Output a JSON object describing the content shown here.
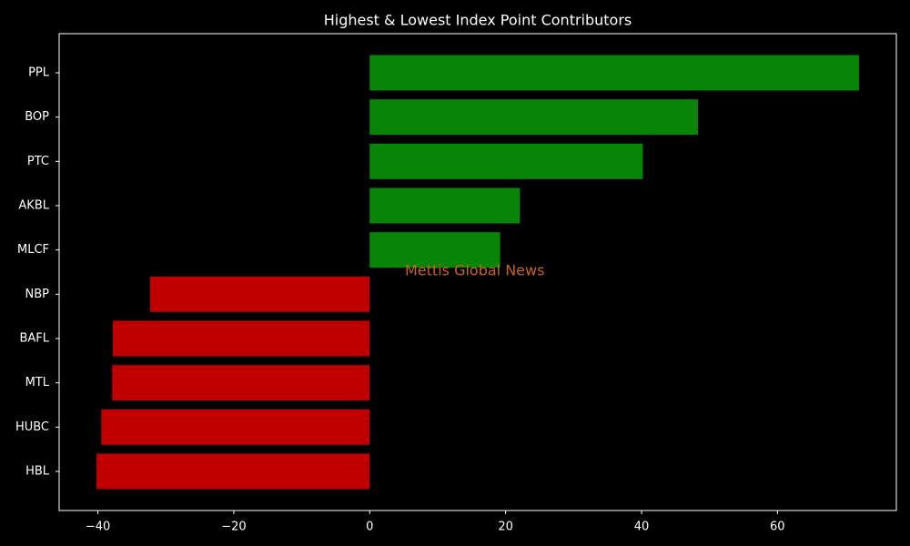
{
  "chart_data": {
    "type": "barh",
    "title": "Highest & Lowest Index Point Contributors",
    "categories": [
      "PPL",
      "BOP",
      "PTC",
      "AKBL",
      "MLCF",
      "NBP",
      "BAFL",
      "MTL",
      "HUBC",
      "HBL"
    ],
    "values": [
      72,
      48.3,
      40.2,
      22.1,
      19.2,
      -32.3,
      -37.8,
      -37.9,
      -39.5,
      -40.2
    ],
    "colors": [
      "#088408",
      "#088408",
      "#088408",
      "#088408",
      "#088408",
      "#c00000",
      "#c00000",
      "#c00000",
      "#c00000",
      "#c00000"
    ],
    "xlim": [
      -45.7,
      77.5
    ],
    "xticks": [
      {
        "value": -40,
        "label": "−40"
      },
      {
        "value": -20,
        "label": "−20"
      },
      0,
      20,
      40,
      60
    ],
    "annotation": "Mettis Global News",
    "annotation_color": "#c8641e"
  }
}
